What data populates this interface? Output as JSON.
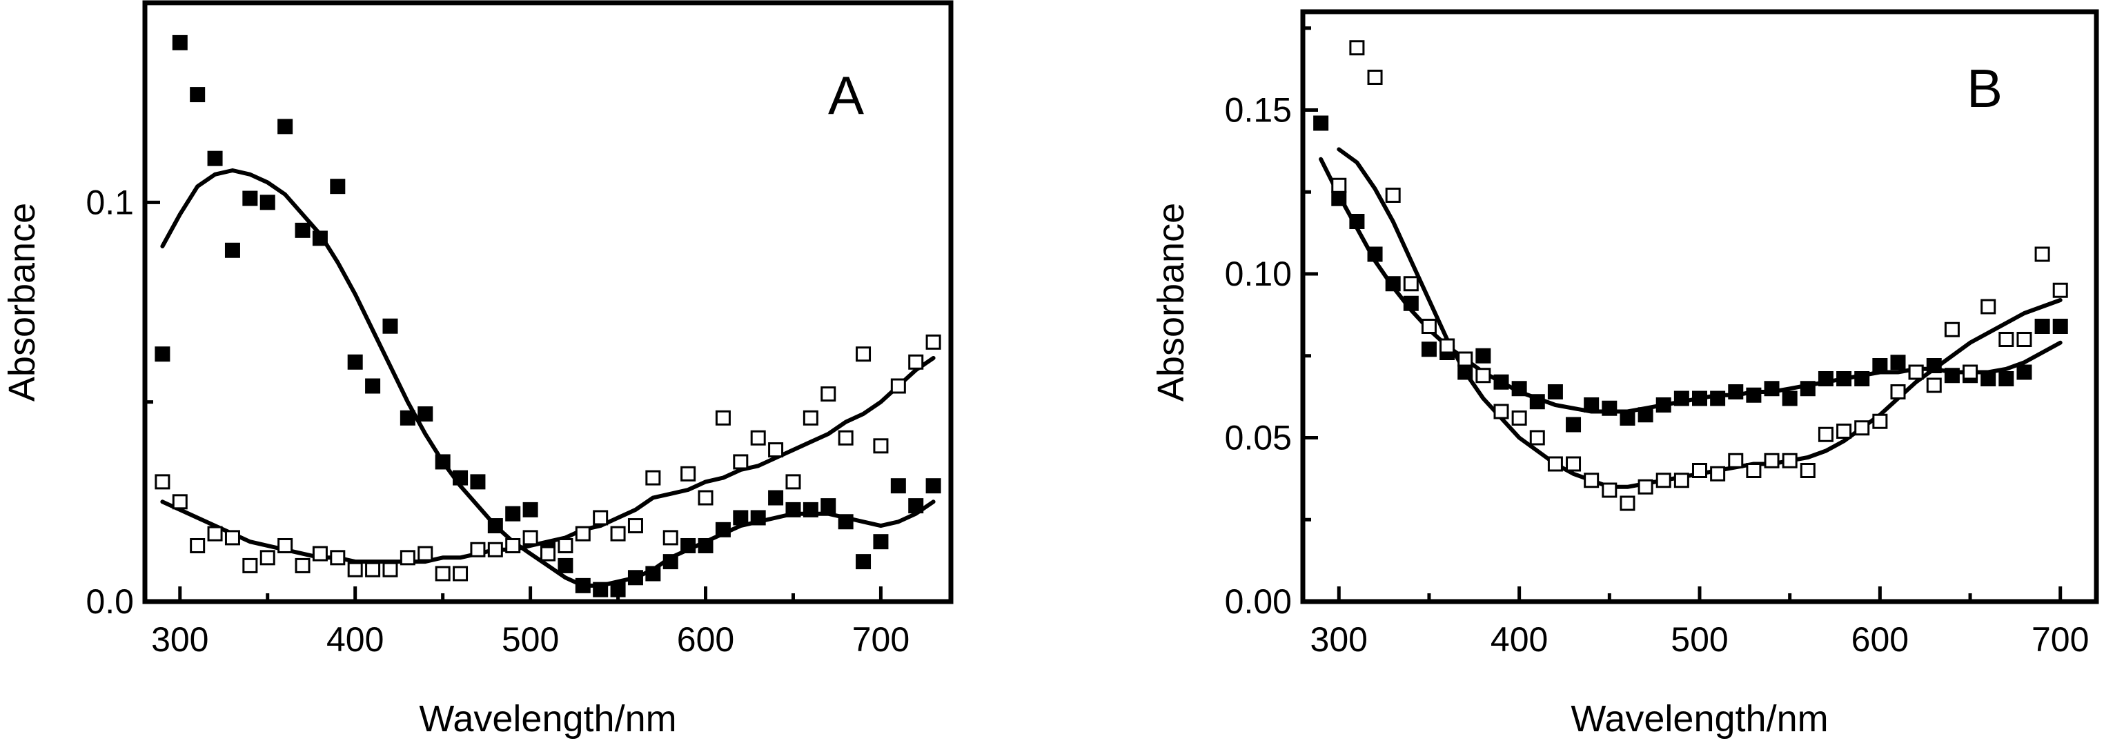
{
  "chart_data": [
    {
      "type": "scatter",
      "panel_label": "A",
      "title": "",
      "xlabel": "Wavelength/nm",
      "ylabel": "Absorbance",
      "xlim": [
        280,
        740
      ],
      "ylim": [
        0.0,
        0.15
      ],
      "xticks": [
        300,
        400,
        500,
        600,
        700
      ],
      "xtick_labels": [
        "300",
        "400",
        "500",
        "600",
        "700"
      ],
      "yticks": [
        0.0,
        0.1
      ],
      "ytick_labels": [
        "0.0",
        "0.1"
      ],
      "yminor": [
        0.05,
        0.15
      ],
      "series": [
        {
          "name": "filled",
          "marker": "filled-square",
          "x": [
            290,
            300,
            310,
            320,
            330,
            340,
            350,
            360,
            370,
            380,
            390,
            400,
            410,
            420,
            430,
            440,
            450,
            460,
            470,
            480,
            490,
            500,
            510,
            520,
            530,
            540,
            550,
            560,
            570,
            580,
            590,
            600,
            610,
            620,
            630,
            640,
            650,
            660,
            670,
            680,
            690,
            700,
            710,
            720,
            730
          ],
          "y": [
            0.062,
            0.14,
            0.127,
            0.111,
            0.088,
            0.101,
            0.1,
            0.119,
            0.093,
            0.091,
            0.104,
            0.06,
            0.054,
            0.069,
            0.046,
            0.047,
            0.035,
            0.031,
            0.03,
            0.019,
            0.022,
            0.023,
            0.013,
            0.009,
            0.004,
            0.003,
            0.003,
            0.006,
            0.007,
            0.01,
            0.014,
            0.014,
            0.018,
            0.021,
            0.021,
            0.026,
            0.023,
            0.023,
            0.024,
            0.02,
            0.01,
            0.015,
            0.029,
            0.024,
            0.029
          ]
        },
        {
          "name": "open",
          "marker": "open-square",
          "x": [
            290,
            300,
            310,
            320,
            330,
            340,
            350,
            360,
            370,
            380,
            390,
            400,
            410,
            420,
            430,
            440,
            450,
            460,
            470,
            480,
            490,
            500,
            510,
            520,
            530,
            540,
            550,
            560,
            570,
            580,
            590,
            600,
            610,
            620,
            630,
            640,
            650,
            660,
            670,
            680,
            690,
            700,
            710,
            720,
            730
          ],
          "y": [
            0.03,
            0.025,
            0.014,
            0.017,
            0.016,
            0.009,
            0.011,
            0.014,
            0.009,
            0.012,
            0.011,
            0.008,
            0.008,
            0.008,
            0.011,
            0.012,
            0.007,
            0.007,
            0.013,
            0.013,
            0.014,
            0.016,
            0.012,
            0.014,
            0.017,
            0.021,
            0.017,
            0.019,
            0.031,
            0.016,
            0.032,
            0.026,
            0.046,
            0.035,
            0.041,
            0.038,
            0.03,
            0.046,
            0.052,
            0.041,
            0.062,
            0.039,
            0.054,
            0.06,
            0.065
          ]
        }
      ],
      "fits": [
        {
          "name": "filled-fit",
          "x": [
            290,
            300,
            310,
            320,
            330,
            340,
            350,
            360,
            370,
            380,
            390,
            400,
            410,
            420,
            430,
            440,
            450,
            460,
            470,
            480,
            490,
            500,
            510,
            520,
            530,
            540,
            550,
            560,
            570,
            580,
            590,
            600,
            610,
            620,
            630,
            640,
            650,
            660,
            670,
            680,
            690,
            700,
            710,
            720,
            730
          ],
          "y": [
            0.089,
            0.097,
            0.104,
            0.107,
            0.108,
            0.107,
            0.105,
            0.102,
            0.097,
            0.092,
            0.085,
            0.077,
            0.068,
            0.059,
            0.05,
            0.042,
            0.035,
            0.029,
            0.024,
            0.019,
            0.015,
            0.012,
            0.009,
            0.006,
            0.004,
            0.004,
            0.005,
            0.006,
            0.008,
            0.011,
            0.013,
            0.015,
            0.017,
            0.019,
            0.02,
            0.021,
            0.022,
            0.022,
            0.022,
            0.021,
            0.02,
            0.019,
            0.02,
            0.022,
            0.025
          ]
        },
        {
          "name": "open-fit",
          "x": [
            290,
            300,
            310,
            320,
            330,
            340,
            350,
            360,
            370,
            380,
            390,
            400,
            410,
            420,
            430,
            440,
            450,
            460,
            470,
            480,
            490,
            500,
            510,
            520,
            530,
            540,
            550,
            560,
            570,
            580,
            590,
            600,
            610,
            620,
            630,
            640,
            650,
            660,
            670,
            680,
            690,
            700,
            710,
            720,
            730
          ],
          "y": [
            0.025,
            0.023,
            0.021,
            0.019,
            0.017,
            0.015,
            0.014,
            0.013,
            0.012,
            0.011,
            0.011,
            0.01,
            0.01,
            0.01,
            0.01,
            0.01,
            0.011,
            0.011,
            0.012,
            0.013,
            0.013,
            0.014,
            0.015,
            0.016,
            0.018,
            0.019,
            0.021,
            0.023,
            0.026,
            0.027,
            0.028,
            0.03,
            0.031,
            0.033,
            0.034,
            0.036,
            0.038,
            0.04,
            0.042,
            0.045,
            0.047,
            0.05,
            0.054,
            0.058,
            0.061
          ]
        }
      ]
    },
    {
      "type": "scatter",
      "panel_label": "B",
      "title": "",
      "xlabel": "Wavelength/nm",
      "ylabel": "Absorbance",
      "xlim": [
        280,
        720
      ],
      "ylim": [
        0.0,
        0.18
      ],
      "xticks": [
        300,
        400,
        500,
        600,
        700
      ],
      "xtick_labels": [
        "300",
        "400",
        "500",
        "600",
        "700"
      ],
      "yticks": [
        0.0,
        0.05,
        0.1,
        0.15
      ],
      "ytick_labels": [
        "0.00",
        "0.05",
        "0.10",
        "0.15"
      ],
      "yminor": [
        0.025,
        0.075,
        0.125,
        0.175
      ],
      "series": [
        {
          "name": "filled",
          "marker": "filled-square",
          "x": [
            290,
            300,
            310,
            320,
            330,
            340,
            350,
            360,
            370,
            380,
            390,
            400,
            410,
            420,
            430,
            440,
            450,
            460,
            470,
            480,
            490,
            500,
            510,
            520,
            530,
            540,
            550,
            560,
            570,
            580,
            590,
            600,
            610,
            620,
            630,
            640,
            650,
            660,
            670,
            680,
            690,
            700
          ],
          "y": [
            0.146,
            0.123,
            0.116,
            0.106,
            0.097,
            0.091,
            0.077,
            0.076,
            0.07,
            0.075,
            0.067,
            0.065,
            0.061,
            0.064,
            0.054,
            0.06,
            0.059,
            0.056,
            0.057,
            0.06,
            0.062,
            0.062,
            0.062,
            0.064,
            0.063,
            0.065,
            0.062,
            0.065,
            0.068,
            0.068,
            0.068,
            0.072,
            0.073,
            0.07,
            0.072,
            0.069,
            0.069,
            0.068,
            0.068,
            0.07,
            0.084,
            0.084
          ]
        },
        {
          "name": "open",
          "marker": "open-square",
          "x": [
            300,
            310,
            320,
            330,
            340,
            350,
            360,
            370,
            380,
            390,
            400,
            410,
            420,
            430,
            440,
            450,
            460,
            470,
            480,
            490,
            500,
            510,
            520,
            530,
            540,
            550,
            560,
            570,
            580,
            590,
            600,
            610,
            620,
            630,
            640,
            650,
            660,
            670,
            680,
            690,
            700
          ],
          "y": [
            0.127,
            0.169,
            0.16,
            0.124,
            0.097,
            0.084,
            0.078,
            0.074,
            0.069,
            0.058,
            0.056,
            0.05,
            0.042,
            0.042,
            0.037,
            0.034,
            0.03,
            0.035,
            0.037,
            0.037,
            0.04,
            0.039,
            0.043,
            0.04,
            0.043,
            0.043,
            0.04,
            0.051,
            0.052,
            0.053,
            0.055,
            0.064,
            0.07,
            0.066,
            0.083,
            0.07,
            0.09,
            0.08,
            0.08,
            0.106,
            0.095
          ]
        }
      ],
      "fits": [
        {
          "name": "filled-fit",
          "x": [
            290,
            300,
            310,
            320,
            330,
            340,
            350,
            360,
            370,
            380,
            390,
            400,
            410,
            420,
            430,
            440,
            450,
            460,
            470,
            480,
            490,
            500,
            510,
            520,
            530,
            540,
            550,
            560,
            570,
            580,
            590,
            600,
            610,
            620,
            630,
            640,
            650,
            660,
            670,
            680,
            690,
            700
          ],
          "y": [
            0.135,
            0.124,
            0.114,
            0.104,
            0.096,
            0.089,
            0.083,
            0.078,
            0.074,
            0.07,
            0.067,
            0.064,
            0.062,
            0.06,
            0.059,
            0.058,
            0.058,
            0.058,
            0.059,
            0.06,
            0.061,
            0.062,
            0.063,
            0.063,
            0.064,
            0.064,
            0.065,
            0.066,
            0.067,
            0.068,
            0.069,
            0.07,
            0.07,
            0.071,
            0.071,
            0.07,
            0.07,
            0.07,
            0.071,
            0.073,
            0.076,
            0.079
          ]
        },
        {
          "name": "open-fit",
          "x": [
            300,
            310,
            320,
            330,
            340,
            350,
            360,
            370,
            380,
            390,
            400,
            410,
            420,
            430,
            440,
            450,
            460,
            470,
            480,
            490,
            500,
            510,
            520,
            530,
            540,
            550,
            560,
            570,
            580,
            590,
            600,
            610,
            620,
            630,
            640,
            650,
            660,
            670,
            680,
            690,
            700
          ],
          "y": [
            0.138,
            0.134,
            0.126,
            0.116,
            0.104,
            0.092,
            0.08,
            0.07,
            0.062,
            0.056,
            0.05,
            0.046,
            0.042,
            0.039,
            0.037,
            0.035,
            0.035,
            0.036,
            0.037,
            0.038,
            0.039,
            0.04,
            0.041,
            0.042,
            0.042,
            0.043,
            0.044,
            0.046,
            0.049,
            0.053,
            0.057,
            0.062,
            0.067,
            0.071,
            0.075,
            0.079,
            0.082,
            0.085,
            0.088,
            0.09,
            0.092
          ]
        }
      ]
    }
  ]
}
